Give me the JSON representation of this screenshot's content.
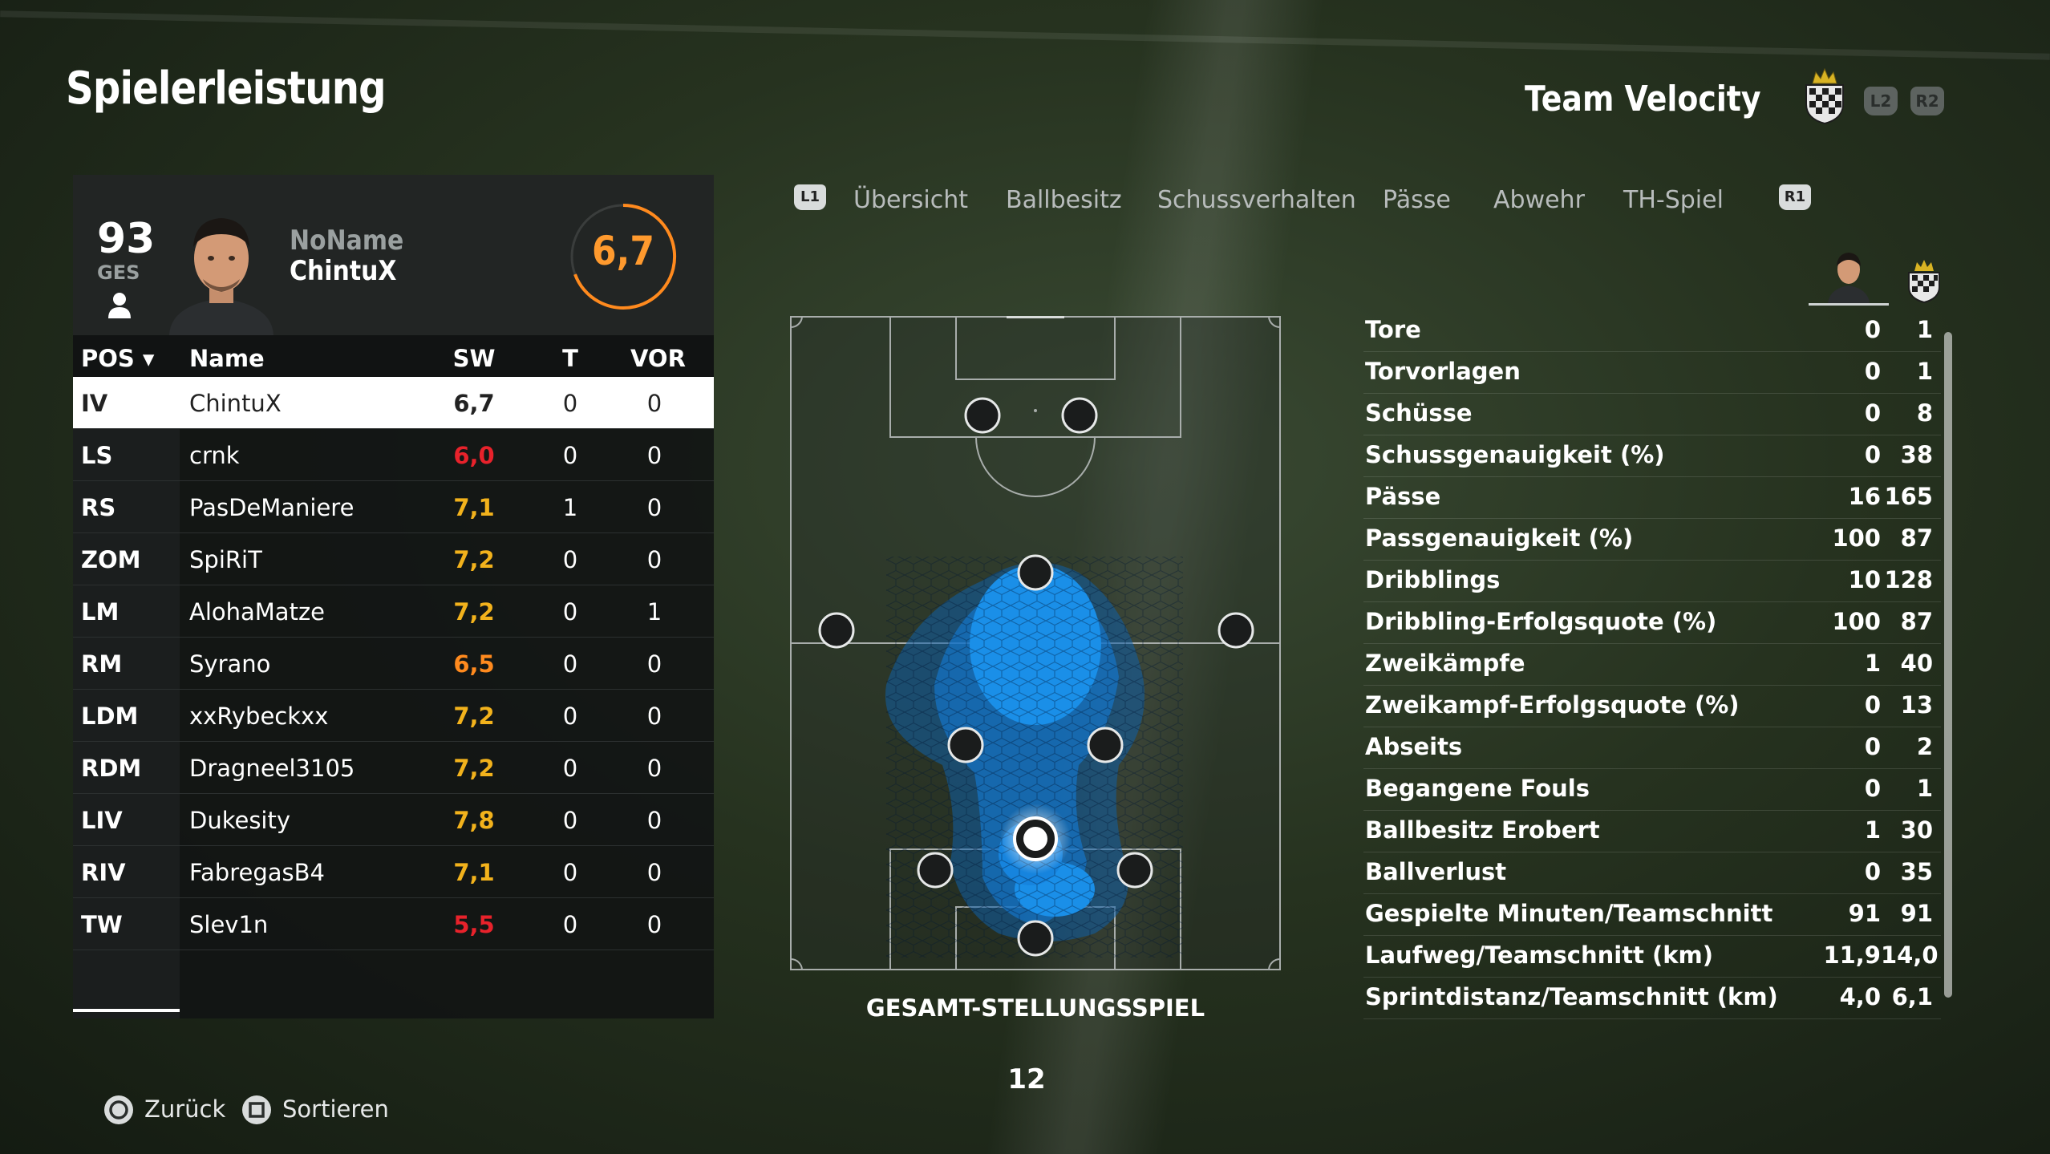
{
  "header": {
    "title": "Spielerleistung",
    "team_name": "Team Velocity",
    "l2_label": "L2",
    "r2_label": "R2"
  },
  "player": {
    "overall": "93",
    "overall_label": "GES",
    "name_top": "NoName",
    "name_bottom": "ChintuX",
    "rating": "6,7",
    "rating_color": "#ff9a2e"
  },
  "roster": {
    "headers": {
      "pos": "POS",
      "name": "Name",
      "sw": "SW",
      "t": "T",
      "vor": "VOR"
    },
    "rows": [
      {
        "pos": "IV",
        "name": "ChintuX",
        "sw": "6,7",
        "t": "0",
        "vor": "0",
        "sw_color": "#222222"
      },
      {
        "pos": "LS",
        "name": "crnk",
        "sw": "6,0",
        "t": "0",
        "vor": "0",
        "sw_color": "#e8222b"
      },
      {
        "pos": "RS",
        "name": "PasDeManiere",
        "sw": "7,1",
        "t": "1",
        "vor": "0",
        "sw_color": "#f2b21c"
      },
      {
        "pos": "ZOM",
        "name": "SpiRiT",
        "sw": "7,2",
        "t": "0",
        "vor": "0",
        "sw_color": "#f2b21c"
      },
      {
        "pos": "LM",
        "name": "AlohaMatze",
        "sw": "7,2",
        "t": "0",
        "vor": "1",
        "sw_color": "#f2b21c"
      },
      {
        "pos": "RM",
        "name": "Syrano",
        "sw": "6,5",
        "t": "0",
        "vor": "0",
        "sw_color": "#ff8a1e"
      },
      {
        "pos": "LDM",
        "name": "xxRybeckxx",
        "sw": "7,2",
        "t": "0",
        "vor": "0",
        "sw_color": "#f2b21c"
      },
      {
        "pos": "RDM",
        "name": "Dragneel3105",
        "sw": "7,2",
        "t": "0",
        "vor": "0",
        "sw_color": "#f2b21c"
      },
      {
        "pos": "LIV",
        "name": "Dukesity",
        "sw": "7,8",
        "t": "0",
        "vor": "0",
        "sw_color": "#f2b21c"
      },
      {
        "pos": "RIV",
        "name": "FabregasB4",
        "sw": "7,1",
        "t": "0",
        "vor": "0",
        "sw_color": "#f2b21c"
      },
      {
        "pos": "TW",
        "name": "Slev1n",
        "sw": "5,5",
        "t": "0",
        "vor": "0",
        "sw_color": "#e8222b"
      }
    ]
  },
  "tabs": {
    "l1": "L1",
    "r1": "R1",
    "items": [
      "Übersicht",
      "Ballbesitz",
      "Schussverhalten",
      "Pässe",
      "Abwehr",
      "TH-Spiel"
    ],
    "active": "Übersicht"
  },
  "pitch": {
    "label": "GESAMT-STELLUNGSSPIEL",
    "heat_color": "#1a8fe8"
  },
  "page_number": "12",
  "stats": [
    {
      "label": "Tore",
      "player": "0",
      "team": "1"
    },
    {
      "label": "Torvorlagen",
      "player": "0",
      "team": "1"
    },
    {
      "label": "Schüsse",
      "player": "0",
      "team": "8"
    },
    {
      "label": "Schussgenauigkeit (%)",
      "player": "0",
      "team": "38"
    },
    {
      "label": "Pässe",
      "player": "16",
      "team": "165"
    },
    {
      "label": "Passgenauigkeit (%)",
      "player": "100",
      "team": "87"
    },
    {
      "label": "Dribblings",
      "player": "10",
      "team": "128"
    },
    {
      "label": "Dribbling-Erfolgsquote (%)",
      "player": "100",
      "team": "87"
    },
    {
      "label": "Zweikämpfe",
      "player": "1",
      "team": "40"
    },
    {
      "label": "Zweikampf-Erfolgsquote (%)",
      "player": "0",
      "team": "13"
    },
    {
      "label": "Abseits",
      "player": "0",
      "team": "2"
    },
    {
      "label": "Begangene Fouls",
      "player": "0",
      "team": "1"
    },
    {
      "label": "Ballbesitz Erobert",
      "player": "1",
      "team": "30"
    },
    {
      "label": "Ballverlust",
      "player": "0",
      "team": "35"
    },
    {
      "label": "Gespielte Minuten/Teamschnitt",
      "player": "91",
      "team": "91"
    },
    {
      "label": "Laufweg/Teamschnitt (km)",
      "player": "11,9",
      "team": "14,0"
    },
    {
      "label": "Sprintdistanz/Teamschnitt (km)",
      "player": "4,0",
      "team": "6,1"
    }
  ],
  "footer": {
    "back_label": "Zurück",
    "sort_label": "Sortieren"
  }
}
